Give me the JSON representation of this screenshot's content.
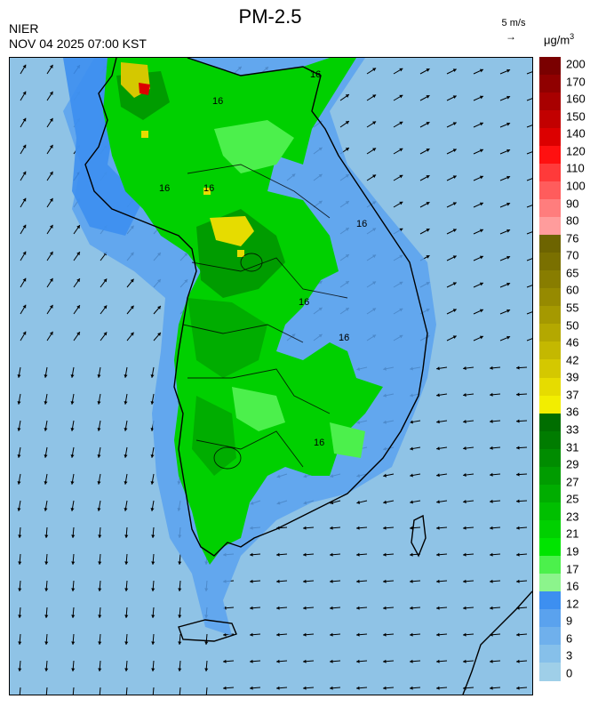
{
  "header": {
    "title": "PM-2.5",
    "organization": "NIER",
    "timestamp": "NOV 04 2025 07:00 KST",
    "wind_reference": "5 m/s",
    "wind_arrow": "→",
    "unit": "μg/m",
    "unit_exp": "3"
  },
  "legend": {
    "labels": [
      "200",
      "170",
      "160",
      "150",
      "140",
      "120",
      "110",
      "100",
      "90",
      "80",
      "76",
      "70",
      "65",
      "60",
      "55",
      "50",
      "46",
      "42",
      "39",
      "37",
      "36",
      "33",
      "31",
      "29",
      "27",
      "25",
      "23",
      "21",
      "19",
      "17",
      "16",
      "12",
      "9",
      "6",
      "3",
      "0"
    ],
    "colors": [
      "#7a0000",
      "#900000",
      "#a80000",
      "#c20000",
      "#dc0000",
      "#ff1010",
      "#ff3a3a",
      "#ff5c5c",
      "#ff7d7d",
      "#ff9c9c",
      "#6d6400",
      "#7a7000",
      "#887d00",
      "#968a00",
      "#a59900",
      "#b4a800",
      "#c4b800",
      "#d4c800",
      "#e6dc00",
      "#f2ee00",
      "#006e00",
      "#007c00",
      "#008c00",
      "#009c00",
      "#00ad00",
      "#00bf00",
      "#00d000",
      "#00e400",
      "#4cf04c",
      "#8cf48c",
      "#3d8ff0",
      "#5aa2ee",
      "#6fb0ec",
      "#86c0ea",
      "#9fcfe8"
    ]
  },
  "map": {
    "contour_labels": [
      "16",
      "16",
      "16",
      "16",
      "16",
      "16",
      "16",
      "16"
    ]
  }
}
